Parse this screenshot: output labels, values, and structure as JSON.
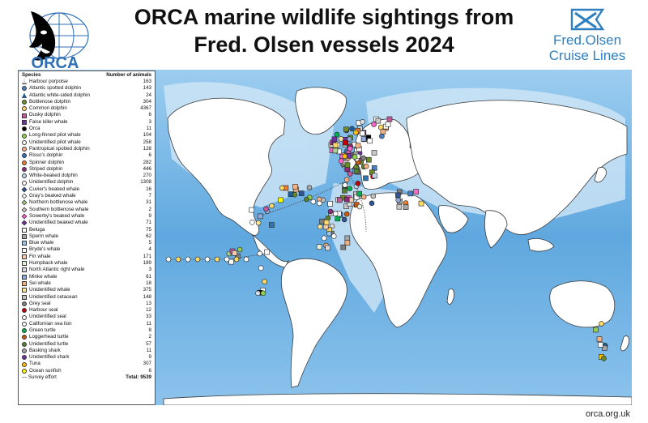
{
  "title": {
    "line1": "ORCA marine wildlife sightings from",
    "line2": "Fred. Olsen vessels 2024"
  },
  "orca_logo": {
    "text": "ORCA"
  },
  "fred_olsen_logo": {
    "line1": "Fred.Olsen",
    "line2": "Cruise Lines"
  },
  "legend": {
    "header_species": "Species",
    "header_count": "Number of animals",
    "items": [
      {
        "name": "Harbour porpoise",
        "count": "163",
        "color": "#d9d9d9",
        "shape": "tri"
      },
      {
        "name": "Atlantic spotted dolphin",
        "count": "143",
        "color": "#4a7fc1",
        "shape": "circle"
      },
      {
        "name": "Atlantic white-sided dolphin",
        "count": "24",
        "color": "#1f5f99",
        "shape": "tri"
      },
      {
        "name": "Bottlenose dolphin",
        "count": "304",
        "color": "#6b8e23",
        "shape": "circle"
      },
      {
        "name": "Common dolphin",
        "count": "4367",
        "color": "#ffd966",
        "shape": "circle"
      },
      {
        "name": "Dusky dolphin",
        "count": "6",
        "color": "#c55a9d",
        "shape": "square"
      },
      {
        "name": "False killer whale",
        "count": "3",
        "color": "#7030a0",
        "shape": "square"
      },
      {
        "name": "Orca",
        "count": "11",
        "color": "#000000",
        "shape": "circle"
      },
      {
        "name": "Long-finned pilot whale",
        "count": "104",
        "color": "#92d050",
        "shape": "circle"
      },
      {
        "name": "Unidentified pilot whale",
        "count": "258",
        "color": "#ffffff",
        "shape": "circle"
      },
      {
        "name": "Pantropical spotted dolphin",
        "count": "128",
        "color": "#f4b183",
        "shape": "circle"
      },
      {
        "name": "Risso's dolphin",
        "count": "6",
        "color": "#2e75b6",
        "shape": "circle"
      },
      {
        "name": "Spinner dolphin",
        "count": "282",
        "color": "#ed7d31",
        "shape": "circle"
      },
      {
        "name": "Striped dolphin",
        "count": "446",
        "color": "#8e2c78",
        "shape": "circle"
      },
      {
        "name": "White-beaked dolphin",
        "count": "270",
        "color": "#bdd7ee",
        "shape": "circle"
      },
      {
        "name": "Unidentified dolphin",
        "count": "1308",
        "color": "#ffffff",
        "shape": "circle"
      },
      {
        "name": "Cuvier's beaked whale",
        "count": "16",
        "color": "#2f5597",
        "shape": "diamond"
      },
      {
        "name": "Gray's beaked whale",
        "count": "7",
        "color": "#ffffff",
        "shape": "diamond"
      },
      {
        "name": "Northern bottlenose whale",
        "count": "31",
        "color": "#a9d18e",
        "shape": "diamond"
      },
      {
        "name": "Southern bottlenose whale",
        "count": "2",
        "color": "#c9c9c9",
        "shape": "diamond"
      },
      {
        "name": "Sowerby's beaked whale",
        "count": "9",
        "color": "#ff66cc",
        "shape": "diamond"
      },
      {
        "name": "Unidentified beaked whale",
        "count": "71",
        "color": "#7030a0",
        "shape": "diamond"
      },
      {
        "name": "Beluga",
        "count": "75",
        "color": "#ffffff",
        "shape": "square"
      },
      {
        "name": "Sperm whale",
        "count": "62",
        "color": "#a6a6a6",
        "shape": "square"
      },
      {
        "name": "Blue whale",
        "count": "5",
        "color": "#9dc3e6",
        "shape": "square"
      },
      {
        "name": "Bryde's whale",
        "count": "4",
        "color": "#ffffff",
        "shape": "square"
      },
      {
        "name": "Fin whale",
        "count": "171",
        "color": "#f8cbad",
        "shape": "square"
      },
      {
        "name": "Humpback whale",
        "count": "189",
        "color": "#e2f0d9",
        "shape": "square"
      },
      {
        "name": "North Atlantic right whale",
        "count": "3",
        "color": "#d6dce4",
        "shape": "square"
      },
      {
        "name": "Minke whale",
        "count": "61",
        "color": "#8faadc",
        "shape": "square"
      },
      {
        "name": "Sei whale",
        "count": "18",
        "color": "#f4b183",
        "shape": "square"
      },
      {
        "name": "Unidentified whale",
        "count": "375",
        "color": "#ffe699",
        "shape": "square"
      },
      {
        "name": "Unidentified cetacean",
        "count": "148",
        "color": "#bfbfbf",
        "shape": "square"
      },
      {
        "name": "Grey seal",
        "count": "13",
        "color": "#7f7f7f",
        "shape": "circle"
      },
      {
        "name": "Harbour seal",
        "count": "12",
        "color": "#c00000",
        "shape": "circle"
      },
      {
        "name": "Unidentified seal",
        "count": "33",
        "color": "#ffffff",
        "shape": "circle"
      },
      {
        "name": "Californian sea lion",
        "count": "11",
        "color": "#ffffff",
        "shape": "circle"
      },
      {
        "name": "Green turtle",
        "count": "8",
        "color": "#00b050",
        "shape": "circle"
      },
      {
        "name": "Loggerhead turtle",
        "count": "2",
        "color": "#c65911",
        "shape": "circle"
      },
      {
        "name": "Unidentified turtle",
        "count": "57",
        "color": "#548235",
        "shape": "circle"
      },
      {
        "name": "Basking shark",
        "count": "11",
        "color": "#a5a5a5",
        "shape": "circle"
      },
      {
        "name": "Unidentified shark",
        "count": "9",
        "color": "#7030a0",
        "shape": "circle"
      },
      {
        "name": "Tuna",
        "count": "307",
        "color": "#ffc000",
        "shape": "circle"
      },
      {
        "name": "Ocean sunfish",
        "count": "6",
        "color": "#ffff00",
        "shape": "circle"
      }
    ],
    "survey_effort": "— Survey effort",
    "total": "Total: 9539"
  },
  "colors": {
    "ocean_deep": "#5fa8df",
    "ocean_shallow": "#cfe6f6",
    "land": "#ffffff",
    "fo_blue": "#2d7fc0",
    "orca_blue": "#2f6fb5"
  },
  "footer": {
    "url": "orca.org.uk"
  }
}
